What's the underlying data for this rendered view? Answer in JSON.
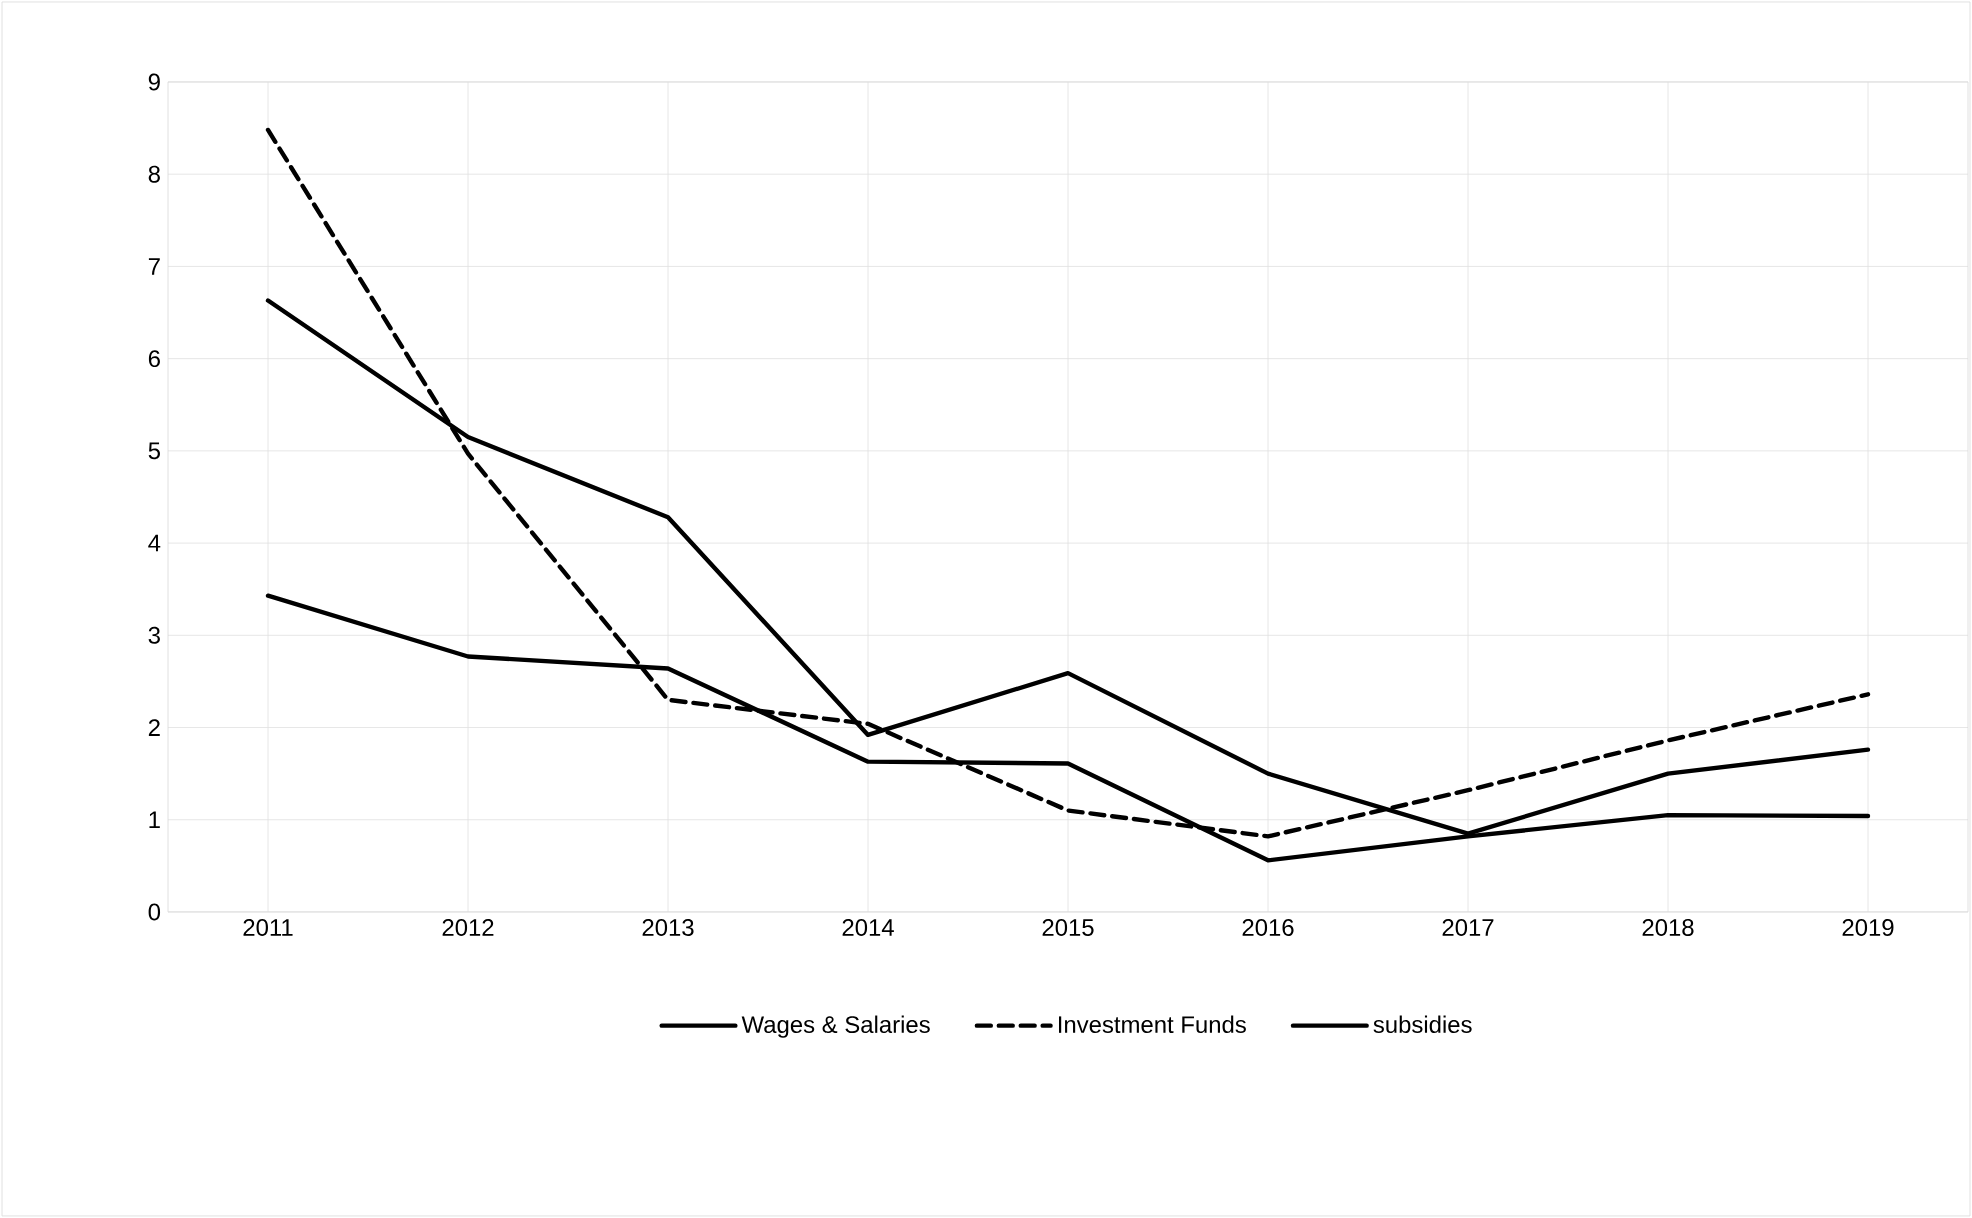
{
  "chart_data": {
    "type": "line",
    "categories": [
      "2011",
      "2012",
      "2013",
      "2014",
      "2015",
      "2016",
      "2017",
      "2018",
      "2019"
    ],
    "series": [
      {
        "name": "Wages & Salaries",
        "color": "#000000",
        "line_style": "solid",
        "values": [
          3.43,
          2.77,
          2.64,
          1.63,
          1.61,
          0.56,
          0.82,
          1.05,
          1.04
        ]
      },
      {
        "name": "Investment Funds",
        "color": "#000000",
        "line_style": "dashed",
        "values": [
          8.48,
          4.97,
          2.3,
          2.04,
          1.1,
          0.82,
          1.32,
          1.86,
          2.36
        ]
      },
      {
        "name": "subsidies",
        "color": "#000000",
        "line_style": "solid",
        "values": [
          6.63,
          5.15,
          4.28,
          1.92,
          2.59,
          1.5,
          0.85,
          1.5,
          1.76
        ]
      }
    ],
    "ylim": [
      0,
      9
    ],
    "yticks": [
      0,
      1,
      2,
      3,
      4,
      5,
      6,
      7,
      8,
      9
    ],
    "grid": true,
    "legend": "bottom",
    "marker": "none"
  }
}
